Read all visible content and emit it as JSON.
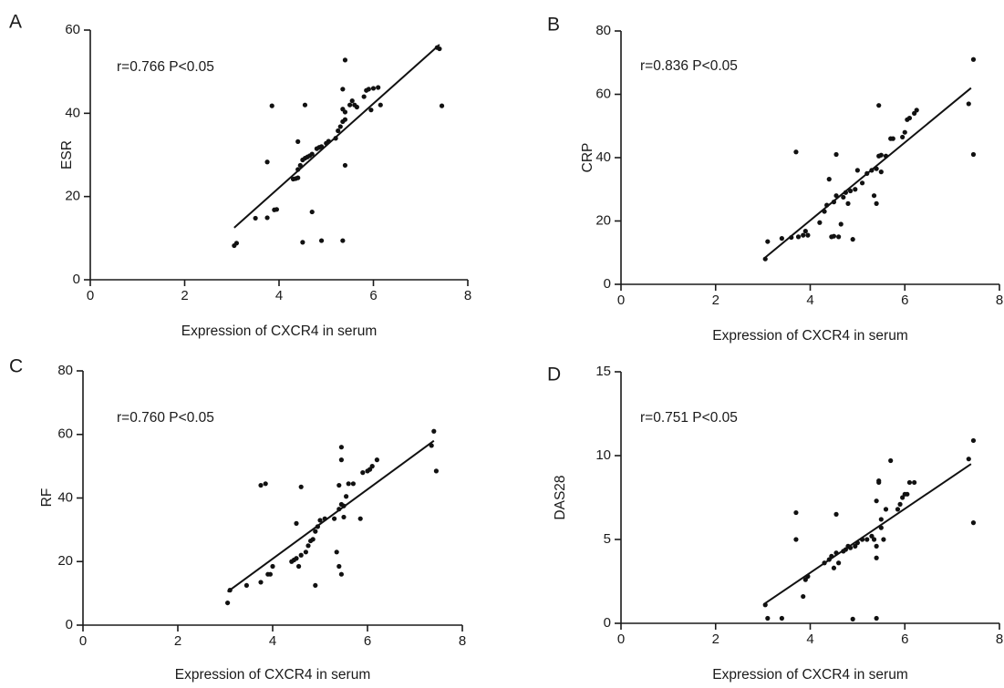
{
  "chart_data": [
    {
      "type": "scatter",
      "panel": "A",
      "annotation": "r=0.766 P<0.05",
      "xlabel": "Expression of CXCR4 in serum",
      "ylabel": "ESR",
      "xlim": [
        0,
        8
      ],
      "ylim": [
        0,
        60
      ],
      "xticks": [
        0,
        2,
        4,
        6,
        8
      ],
      "yticks": [
        0,
        20,
        40,
        60
      ],
      "fit": [
        [
          3.05,
          12.5
        ],
        [
          7.4,
          56.5
        ]
      ],
      "points": [
        [
          3.05,
          8.2
        ],
        [
          3.1,
          8.8
        ],
        [
          3.5,
          14.8
        ],
        [
          3.75,
          14.9
        ],
        [
          3.75,
          28.3
        ],
        [
          3.85,
          41.8
        ],
        [
          3.9,
          16.8
        ],
        [
          3.95,
          16.9
        ],
        [
          4.3,
          24.2
        ],
        [
          4.35,
          24.3
        ],
        [
          4.4,
          24.5
        ],
        [
          4.4,
          26.5
        ],
        [
          4.4,
          33.2
        ],
        [
          4.45,
          27.5
        ],
        [
          4.5,
          9.0
        ],
        [
          4.5,
          28.8
        ],
        [
          4.55,
          29.2
        ],
        [
          4.55,
          42.0
        ],
        [
          4.6,
          29.5
        ],
        [
          4.65,
          29.8
        ],
        [
          4.7,
          16.3
        ],
        [
          4.7,
          30.2
        ],
        [
          4.8,
          31.5
        ],
        [
          4.85,
          31.8
        ],
        [
          4.9,
          9.4
        ],
        [
          4.9,
          32.0
        ],
        [
          5.0,
          32.8
        ],
        [
          5.05,
          33.3
        ],
        [
          5.2,
          34.0
        ],
        [
          5.25,
          35.8
        ],
        [
          5.3,
          36.8
        ],
        [
          5.35,
          9.4
        ],
        [
          5.35,
          38.0
        ],
        [
          5.35,
          41.0
        ],
        [
          5.35,
          45.8
        ],
        [
          5.4,
          27.5
        ],
        [
          5.4,
          38.5
        ],
        [
          5.4,
          40.3
        ],
        [
          5.4,
          52.8
        ],
        [
          5.5,
          42.0
        ],
        [
          5.55,
          43.0
        ],
        [
          5.6,
          42.0
        ],
        [
          5.65,
          41.5
        ],
        [
          5.8,
          44.0
        ],
        [
          5.85,
          45.5
        ],
        [
          5.9,
          45.8
        ],
        [
          5.95,
          40.8
        ],
        [
          6.0,
          46.0
        ],
        [
          6.1,
          46.2
        ],
        [
          6.15,
          42.0
        ],
        [
          7.35,
          55.8
        ],
        [
          7.4,
          55.5
        ],
        [
          7.45,
          41.8
        ]
      ]
    },
    {
      "type": "scatter",
      "panel": "B",
      "annotation": "r=0.836 P<0.05",
      "xlabel": "Expression of CXCR4 in serum",
      "ylabel": "CRP",
      "xlim": [
        0,
        8
      ],
      "ylim": [
        0,
        80
      ],
      "xticks": [
        0,
        2,
        4,
        6,
        8
      ],
      "yticks": [
        0,
        20,
        40,
        60,
        80
      ],
      "fit": [
        [
          3.05,
          8.5
        ],
        [
          7.4,
          62.0
        ]
      ],
      "points": [
        [
          3.05,
          8.0
        ],
        [
          3.1,
          13.5
        ],
        [
          3.4,
          14.5
        ],
        [
          3.6,
          14.8
        ],
        [
          3.7,
          41.8
        ],
        [
          3.75,
          15.0
        ],
        [
          3.85,
          15.5
        ],
        [
          3.9,
          16.8
        ],
        [
          3.95,
          15.5
        ],
        [
          4.2,
          19.5
        ],
        [
          4.3,
          23.0
        ],
        [
          4.35,
          25.0
        ],
        [
          4.4,
          33.2
        ],
        [
          4.45,
          15.0
        ],
        [
          4.5,
          15.2
        ],
        [
          4.5,
          26.0
        ],
        [
          4.55,
          28.0
        ],
        [
          4.55,
          41.0
        ],
        [
          4.6,
          15.0
        ],
        [
          4.65,
          19.0
        ],
        [
          4.7,
          27.5
        ],
        [
          4.75,
          29.0
        ],
        [
          4.8,
          25.5
        ],
        [
          4.85,
          29.5
        ],
        [
          4.9,
          14.2
        ],
        [
          4.95,
          30.0
        ],
        [
          5.0,
          36.0
        ],
        [
          5.1,
          32.0
        ],
        [
          5.2,
          35.0
        ],
        [
          5.3,
          36.0
        ],
        [
          5.35,
          28.0
        ],
        [
          5.4,
          25.5
        ],
        [
          5.4,
          36.5
        ],
        [
          5.45,
          40.5
        ],
        [
          5.45,
          56.5
        ],
        [
          5.5,
          35.5
        ],
        [
          5.5,
          40.8
        ],
        [
          5.6,
          40.5
        ],
        [
          5.7,
          46.0
        ],
        [
          5.75,
          46.0
        ],
        [
          5.95,
          46.5
        ],
        [
          6.0,
          48.0
        ],
        [
          6.05,
          52.0
        ],
        [
          6.1,
          52.5
        ],
        [
          6.2,
          54.0
        ],
        [
          6.25,
          55.0
        ],
        [
          7.35,
          57.0
        ],
        [
          7.45,
          41.0
        ],
        [
          7.45,
          71.0
        ]
      ]
    },
    {
      "type": "scatter",
      "panel": "C",
      "annotation": "r=0.760 P<0.05",
      "xlabel": "Expression of CXCR4 in serum",
      "ylabel": "RF",
      "xlim": [
        0,
        8
      ],
      "ylim": [
        0,
        80
      ],
      "xticks": [
        0,
        2,
        4,
        6,
        8
      ],
      "yticks": [
        0,
        20,
        40,
        60,
        80
      ],
      "fit": [
        [
          3.05,
          10.5
        ],
        [
          7.4,
          58.0
        ]
      ],
      "points": [
        [
          3.05,
          7.0
        ],
        [
          3.1,
          11.0
        ],
        [
          3.45,
          12.5
        ],
        [
          3.75,
          13.5
        ],
        [
          3.75,
          44.0
        ],
        [
          3.85,
          44.5
        ],
        [
          3.9,
          16.0
        ],
        [
          3.95,
          16.0
        ],
        [
          4.0,
          18.5
        ],
        [
          4.4,
          20.0
        ],
        [
          4.45,
          20.5
        ],
        [
          4.5,
          21.0
        ],
        [
          4.5,
          32.0
        ],
        [
          4.55,
          18.5
        ],
        [
          4.6,
          22.0
        ],
        [
          4.6,
          43.5
        ],
        [
          4.7,
          23.0
        ],
        [
          4.75,
          25.0
        ],
        [
          4.8,
          26.5
        ],
        [
          4.85,
          27.0
        ],
        [
          4.9,
          12.5
        ],
        [
          4.9,
          29.5
        ],
        [
          4.95,
          31.0
        ],
        [
          5.0,
          33.0
        ],
        [
          5.1,
          33.5
        ],
        [
          5.3,
          33.5
        ],
        [
          5.35,
          23.0
        ],
        [
          5.4,
          18.5
        ],
        [
          5.4,
          36.5
        ],
        [
          5.4,
          44.0
        ],
        [
          5.45,
          16.0
        ],
        [
          5.45,
          38.0
        ],
        [
          5.45,
          52.0
        ],
        [
          5.45,
          56.0
        ],
        [
          5.5,
          34.0
        ],
        [
          5.5,
          37.5
        ],
        [
          5.55,
          40.5
        ],
        [
          5.6,
          44.5
        ],
        [
          5.7,
          44.5
        ],
        [
          5.85,
          33.5
        ],
        [
          5.9,
          48.0
        ],
        [
          6.0,
          48.5
        ],
        [
          6.05,
          49.0
        ],
        [
          6.1,
          50.0
        ],
        [
          6.2,
          52.0
        ],
        [
          7.35,
          56.5
        ],
        [
          7.4,
          61.0
        ],
        [
          7.45,
          48.5
        ]
      ]
    },
    {
      "type": "scatter",
      "panel": "D",
      "annotation": "r=0.751 P<0.05",
      "xlabel": "Expression of CXCR4 in serum",
      "ylabel": "DAS28",
      "xlim": [
        0,
        8
      ],
      "ylim": [
        0,
        15
      ],
      "xticks": [
        0,
        2,
        4,
        6,
        8
      ],
      "yticks": [
        0,
        5,
        10,
        15
      ],
      "fit": [
        [
          3.05,
          1.2
        ],
        [
          7.4,
          9.5
        ]
      ],
      "points": [
        [
          3.05,
          1.1
        ],
        [
          3.1,
          0.3
        ],
        [
          3.4,
          0.3
        ],
        [
          3.7,
          5.0
        ],
        [
          3.7,
          6.6
        ],
        [
          3.85,
          1.6
        ],
        [
          3.9,
          2.6
        ],
        [
          3.95,
          2.8
        ],
        [
          4.3,
          3.6
        ],
        [
          4.4,
          3.8
        ],
        [
          4.45,
          4.0
        ],
        [
          4.5,
          3.3
        ],
        [
          4.55,
          4.2
        ],
        [
          4.55,
          6.5
        ],
        [
          4.6,
          3.6
        ],
        [
          4.7,
          4.3
        ],
        [
          4.75,
          4.4
        ],
        [
          4.8,
          4.6
        ],
        [
          4.85,
          4.5
        ],
        [
          4.9,
          0.25
        ],
        [
          4.95,
          4.6
        ],
        [
          5.0,
          4.8
        ],
        [
          5.1,
          5.0
        ],
        [
          5.2,
          5.0
        ],
        [
          5.3,
          5.2
        ],
        [
          5.35,
          5.0
        ],
        [
          5.4,
          0.3
        ],
        [
          5.4,
          3.9
        ],
        [
          5.4,
          4.6
        ],
        [
          5.4,
          7.3
        ],
        [
          5.45,
          8.4
        ],
        [
          5.45,
          8.5
        ],
        [
          5.5,
          5.7
        ],
        [
          5.5,
          6.2
        ],
        [
          5.55,
          5.0
        ],
        [
          5.6,
          6.8
        ],
        [
          5.7,
          9.7
        ],
        [
          5.85,
          6.8
        ],
        [
          5.9,
          7.1
        ],
        [
          5.95,
          7.5
        ],
        [
          6.0,
          7.7
        ],
        [
          6.05,
          7.7
        ],
        [
          6.1,
          8.4
        ],
        [
          6.2,
          8.4
        ],
        [
          7.35,
          9.8
        ],
        [
          7.45,
          10.9
        ],
        [
          7.45,
          6.0
        ]
      ]
    }
  ]
}
